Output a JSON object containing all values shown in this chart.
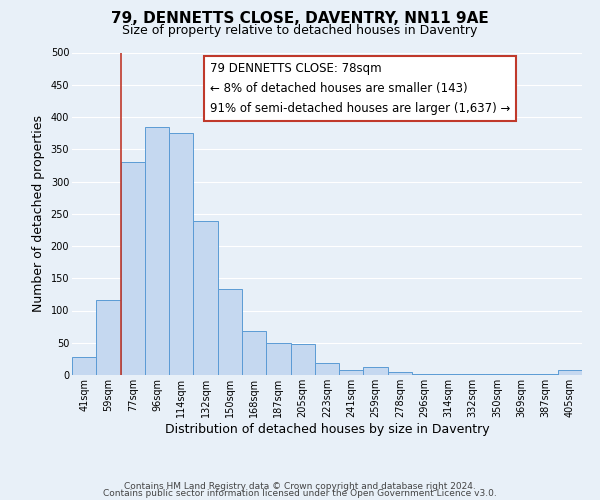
{
  "title": "79, DENNETTS CLOSE, DAVENTRY, NN11 9AE",
  "subtitle": "Size of property relative to detached houses in Daventry",
  "xlabel": "Distribution of detached houses by size in Daventry",
  "ylabel": "Number of detached properties",
  "bin_labels": [
    "41sqm",
    "59sqm",
    "77sqm",
    "96sqm",
    "114sqm",
    "132sqm",
    "150sqm",
    "168sqm",
    "187sqm",
    "205sqm",
    "223sqm",
    "241sqm",
    "259sqm",
    "278sqm",
    "296sqm",
    "314sqm",
    "332sqm",
    "350sqm",
    "369sqm",
    "387sqm",
    "405sqm"
  ],
  "bar_values": [
    28,
    116,
    330,
    385,
    375,
    238,
    133,
    68,
    50,
    48,
    18,
    7,
    13,
    5,
    1,
    1,
    1,
    1,
    1,
    1,
    7
  ],
  "bar_color": "#c5d8f0",
  "bar_edge_color": "#5b9bd5",
  "vline_color": "#c0392b",
  "vline_x": 1.5,
  "ylim": [
    0,
    500
  ],
  "yticks": [
    0,
    50,
    100,
    150,
    200,
    250,
    300,
    350,
    400,
    450,
    500
  ],
  "ann_line1": "79 DENNETTS CLOSE: 78sqm",
  "ann_line2": "← 8% of detached houses are smaller (143)",
  "ann_line3": "91% of semi-detached houses are larger (1,637) →",
  "annotation_box_edge_color": "#c0392b",
  "footer_line1": "Contains HM Land Registry data © Crown copyright and database right 2024.",
  "footer_line2": "Contains public sector information licensed under the Open Government Licence v3.0.",
  "background_color": "#e8f0f8",
  "plot_background_color": "#e8f0f8",
  "grid_color": "#ffffff",
  "title_fontsize": 11,
  "subtitle_fontsize": 9,
  "axis_label_fontsize": 9,
  "tick_fontsize": 7,
  "annotation_fontsize": 8.5,
  "footer_fontsize": 6.5
}
